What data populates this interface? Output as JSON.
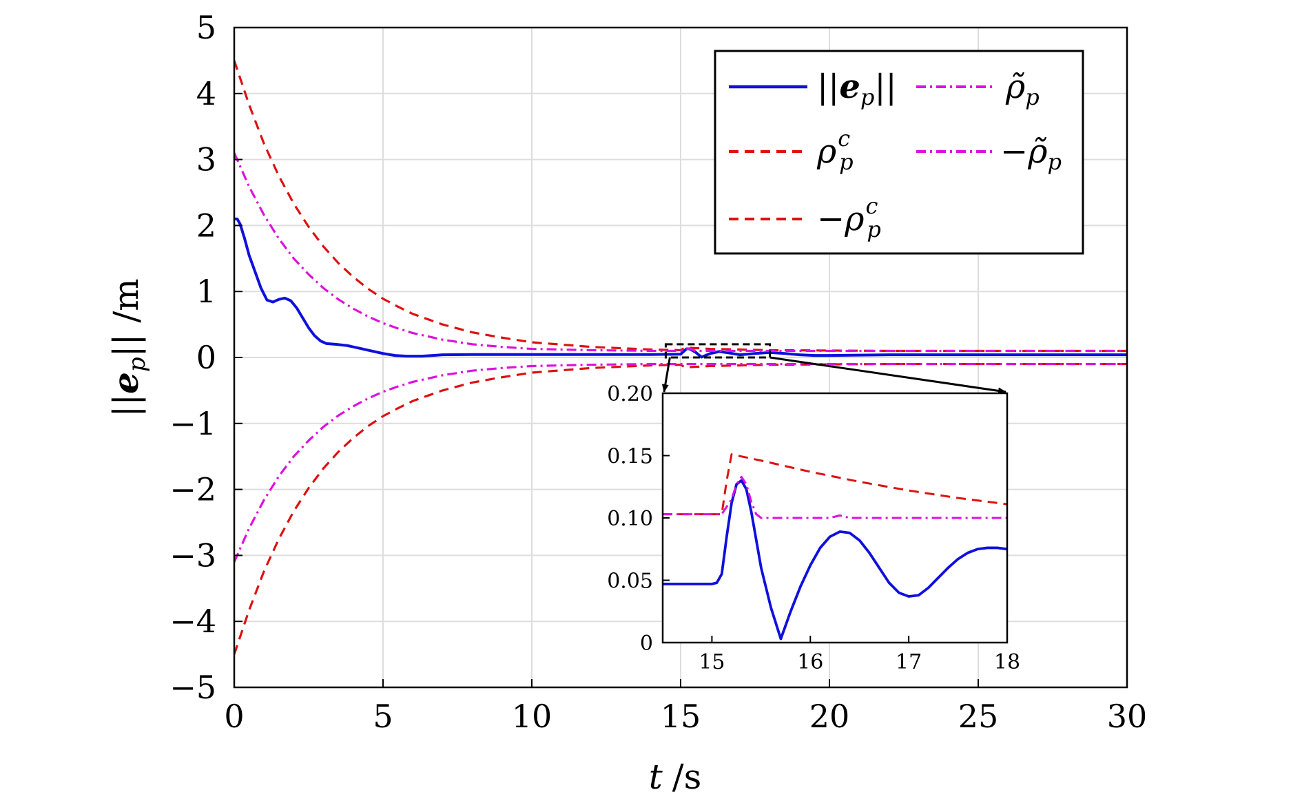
{
  "colors": {
    "ep": "#1010dd",
    "rho_c": "#dd1111",
    "rho_tilde": "#dd11dd",
    "grid": "#dddddd",
    "frame": "#000000"
  },
  "chart_data": [
    {
      "type": "line",
      "title": "",
      "xlabel_var": "t",
      "xlabel_unit": "/s",
      "ylabel_var": "||e_p||",
      "ylabel_unit": "/m",
      "xlim": [
        0,
        30
      ],
      "ylim": [
        -5,
        5
      ],
      "xticks": [
        0,
        5,
        10,
        15,
        20,
        25,
        30
      ],
      "yticks": [
        5,
        4,
        3,
        2,
        1,
        0,
        -1,
        -2,
        -3,
        -4,
        -5
      ],
      "xtick_labels": [
        "0",
        "5",
        "10",
        "15",
        "20",
        "25",
        "30"
      ],
      "ytick_labels": [
        "5",
        "4",
        "3",
        "2",
        "1",
        "0",
        "−1",
        "−2",
        "−3",
        "−4",
        "−5"
      ],
      "grid": true,
      "legend": {
        "placement": "top-right",
        "entries": [
          {
            "label": "||e_p||",
            "series": "ep"
          },
          {
            "label": "ρ̃_p",
            "series": "rho_tilde_pos"
          },
          {
            "label": "ρ_p^c",
            "series": "rho_c_pos"
          },
          {
            "label": "−ρ̃_p",
            "series": "rho_tilde_neg"
          },
          {
            "label": "−ρ_p^c",
            "series": "rho_c_neg"
          }
        ]
      },
      "series": [
        {
          "id": "ep",
          "style": "solid",
          "x": [
            0,
            0.1,
            0.2,
            0.35,
            0.5,
            0.7,
            0.9,
            1.1,
            1.3,
            1.5,
            1.7,
            1.9,
            2.1,
            2.3,
            2.5,
            2.7,
            2.9,
            3.1,
            3.4,
            3.8,
            4.2,
            4.6,
            5.0,
            5.4,
            5.8,
            6.3,
            7,
            8,
            10,
            12,
            14,
            15,
            15.2,
            15.3,
            15.5,
            15.7,
            16,
            16.3,
            16.6,
            17,
            17.5,
            18,
            18.5,
            19,
            19.5,
            20,
            22,
            25,
            30
          ],
          "y": [
            2.1,
            2.1,
            2.02,
            1.8,
            1.55,
            1.3,
            1.05,
            0.87,
            0.84,
            0.88,
            0.9,
            0.86,
            0.75,
            0.6,
            0.45,
            0.33,
            0.25,
            0.21,
            0.2,
            0.18,
            0.14,
            0.1,
            0.06,
            0.03,
            0.02,
            0.02,
            0.04,
            0.045,
            0.045,
            0.045,
            0.045,
            0.05,
            0.13,
            0.13,
            0.08,
            0.005,
            0.06,
            0.09,
            0.07,
            0.04,
            0.06,
            0.075,
            0.06,
            0.04,
            0.03,
            0.03,
            0.04,
            0.04,
            0.04
          ]
        },
        {
          "id": "rho_c_pos",
          "style": "dashed",
          "x": [
            0,
            0.5,
            1,
            1.5,
            2,
            2.5,
            3,
            3.5,
            4,
            4.5,
            5,
            5.5,
            6,
            6.5,
            7,
            8,
            9,
            10,
            12,
            14,
            15,
            15.15,
            16,
            17,
            18,
            20,
            22,
            25,
            30
          ],
          "y": [
            4.5,
            3.83,
            3.24,
            2.75,
            2.33,
            1.98,
            1.68,
            1.43,
            1.22,
            1.04,
            0.89,
            0.77,
            0.66,
            0.58,
            0.5,
            0.38,
            0.3,
            0.23,
            0.16,
            0.12,
            0.11,
            0.15,
            0.13,
            0.12,
            0.11,
            0.105,
            0.1,
            0.1,
            0.1
          ]
        },
        {
          "id": "rho_c_neg",
          "style": "dashed",
          "x": [
            0,
            0.5,
            1,
            1.5,
            2,
            2.5,
            3,
            3.5,
            4,
            4.5,
            5,
            5.5,
            6,
            6.5,
            7,
            8,
            9,
            10,
            12,
            14,
            15,
            15.15,
            16,
            17,
            18,
            20,
            22,
            25,
            30
          ],
          "y": [
            -4.5,
            -3.83,
            -3.24,
            -2.75,
            -2.33,
            -1.98,
            -1.68,
            -1.43,
            -1.22,
            -1.04,
            -0.89,
            -0.77,
            -0.66,
            -0.58,
            -0.5,
            -0.38,
            -0.3,
            -0.23,
            -0.16,
            -0.12,
            -0.11,
            -0.15,
            -0.13,
            -0.12,
            -0.11,
            -0.105,
            -0.1,
            -0.1,
            -0.1
          ]
        },
        {
          "id": "rho_tilde_pos",
          "style": "dashdot",
          "x": [
            0,
            0.5,
            1,
            1.5,
            2,
            2.5,
            3,
            3.5,
            4,
            4.5,
            5,
            5.5,
            6,
            6.5,
            7,
            8,
            9,
            10,
            12,
            14,
            15,
            15.15,
            15.3,
            15.5,
            16,
            17,
            18,
            20,
            25,
            30
          ],
          "y": [
            3.1,
            2.59,
            2.16,
            1.8,
            1.5,
            1.26,
            1.05,
            0.88,
            0.74,
            0.62,
            0.52,
            0.44,
            0.37,
            0.32,
            0.27,
            0.2,
            0.16,
            0.13,
            0.11,
            0.1,
            0.1,
            0.12,
            0.135,
            0.1,
            0.1,
            0.1,
            0.1,
            0.1,
            0.1,
            0.1
          ]
        },
        {
          "id": "rho_tilde_neg",
          "style": "dashdot",
          "x": [
            0,
            0.5,
            1,
            1.5,
            2,
            2.5,
            3,
            3.5,
            4,
            4.5,
            5,
            5.5,
            6,
            6.5,
            7,
            8,
            9,
            10,
            12,
            14,
            15,
            16,
            18,
            20,
            25,
            30
          ],
          "y": [
            -3.1,
            -2.59,
            -2.16,
            -1.8,
            -1.5,
            -1.26,
            -1.05,
            -0.88,
            -0.74,
            -0.62,
            -0.52,
            -0.44,
            -0.37,
            -0.32,
            -0.27,
            -0.2,
            -0.16,
            -0.13,
            -0.11,
            -0.1,
            -0.1,
            -0.1,
            -0.1,
            -0.1,
            -0.1,
            -0.1
          ]
        }
      ]
    },
    {
      "type": "line",
      "role": "inset-zoom",
      "xlim": [
        14.5,
        18
      ],
      "ylim": [
        0,
        0.2
      ],
      "xticks": [
        15,
        16,
        17,
        18
      ],
      "yticks": [
        0.2,
        0.15,
        0.1,
        0.05,
        0
      ],
      "xtick_labels": [
        "15",
        "16",
        "17",
        "18"
      ],
      "ytick_labels": [
        "0.20",
        "0.15",
        "0.10",
        "0.05",
        "0"
      ],
      "grid": false,
      "series": [
        {
          "id": "ep",
          "style": "solid",
          "x": [
            14.5,
            15.0,
            15.05,
            15.1,
            15.15,
            15.2,
            15.25,
            15.3,
            15.35,
            15.4,
            15.5,
            15.6,
            15.7,
            15.8,
            15.9,
            16.0,
            16.1,
            16.2,
            16.3,
            16.4,
            16.5,
            16.6,
            16.7,
            16.8,
            16.9,
            17.0,
            17.1,
            17.2,
            17.3,
            17.4,
            17.5,
            17.6,
            17.7,
            17.8,
            17.9,
            18.0
          ],
          "y": [
            0.047,
            0.047,
            0.048,
            0.055,
            0.085,
            0.112,
            0.127,
            0.13,
            0.123,
            0.105,
            0.06,
            0.028,
            0.003,
            0.025,
            0.045,
            0.062,
            0.076,
            0.085,
            0.089,
            0.088,
            0.082,
            0.072,
            0.06,
            0.048,
            0.04,
            0.037,
            0.038,
            0.044,
            0.052,
            0.06,
            0.067,
            0.072,
            0.075,
            0.076,
            0.076,
            0.075
          ]
        },
        {
          "id": "rho_c_pos",
          "style": "dashed",
          "x": [
            14.5,
            15.1,
            15.15,
            15.2,
            15.5,
            16.0,
            16.5,
            17.0,
            17.5,
            18.0
          ],
          "y": [
            0.103,
            0.103,
            0.13,
            0.151,
            0.146,
            0.137,
            0.129,
            0.122,
            0.116,
            0.111
          ]
        },
        {
          "id": "rho_tilde_pos",
          "style": "dashdot",
          "x": [
            14.5,
            15.1,
            15.2,
            15.25,
            15.3,
            15.35,
            15.4,
            15.45,
            15.5,
            15.6,
            16.0,
            16.2,
            16.3,
            16.4,
            17.0,
            18.0
          ],
          "y": [
            0.103,
            0.103,
            0.115,
            0.127,
            0.133,
            0.127,
            0.113,
            0.103,
            0.1,
            0.1,
            0.1,
            0.1,
            0.102,
            0.1,
            0.1,
            0.1
          ]
        }
      ]
    }
  ]
}
